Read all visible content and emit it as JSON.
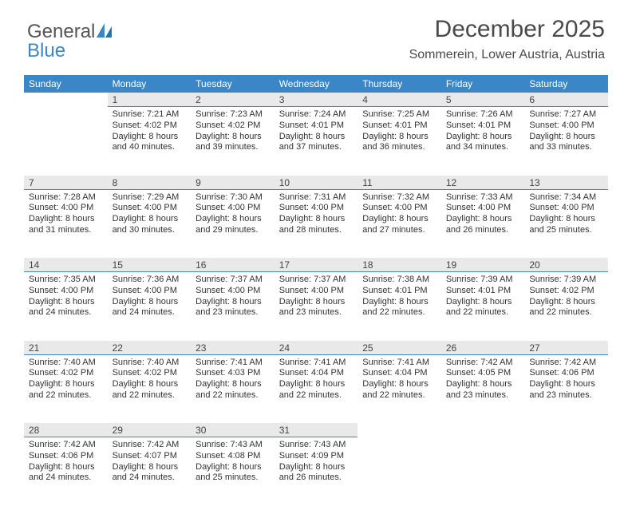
{
  "brand": {
    "word1": "General",
    "word2": "Blue"
  },
  "title": "December 2025",
  "subtitle": "Sommerein, Lower Austria, Austria",
  "colors": {
    "header_bg": "#3b86c6",
    "header_text": "#ffffff",
    "daynum_bg": "#e9e9e9",
    "daynum_border": "#3b86c6",
    "text": "#333333",
    "page_bg": "#ffffff"
  },
  "typography": {
    "title_fontsize": 30,
    "subtitle_fontsize": 16,
    "dayheader_fontsize": 12,
    "daynum_fontsize": 12,
    "cell_fontsize": 11
  },
  "day_headers": [
    "Sunday",
    "Monday",
    "Tuesday",
    "Wednesday",
    "Thursday",
    "Friday",
    "Saturday"
  ],
  "weeks": [
    [
      null,
      {
        "num": "1",
        "sunrise": "7:21 AM",
        "sunset": "4:02 PM",
        "daylight": "8 hours and 40 minutes."
      },
      {
        "num": "2",
        "sunrise": "7:23 AM",
        "sunset": "4:02 PM",
        "daylight": "8 hours and 39 minutes."
      },
      {
        "num": "3",
        "sunrise": "7:24 AM",
        "sunset": "4:01 PM",
        "daylight": "8 hours and 37 minutes."
      },
      {
        "num": "4",
        "sunrise": "7:25 AM",
        "sunset": "4:01 PM",
        "daylight": "8 hours and 36 minutes."
      },
      {
        "num": "5",
        "sunrise": "7:26 AM",
        "sunset": "4:01 PM",
        "daylight": "8 hours and 34 minutes."
      },
      {
        "num": "6",
        "sunrise": "7:27 AM",
        "sunset": "4:00 PM",
        "daylight": "8 hours and 33 minutes."
      }
    ],
    [
      {
        "num": "7",
        "sunrise": "7:28 AM",
        "sunset": "4:00 PM",
        "daylight": "8 hours and 31 minutes."
      },
      {
        "num": "8",
        "sunrise": "7:29 AM",
        "sunset": "4:00 PM",
        "daylight": "8 hours and 30 minutes."
      },
      {
        "num": "9",
        "sunrise": "7:30 AM",
        "sunset": "4:00 PM",
        "daylight": "8 hours and 29 minutes."
      },
      {
        "num": "10",
        "sunrise": "7:31 AM",
        "sunset": "4:00 PM",
        "daylight": "8 hours and 28 minutes."
      },
      {
        "num": "11",
        "sunrise": "7:32 AM",
        "sunset": "4:00 PM",
        "daylight": "8 hours and 27 minutes."
      },
      {
        "num": "12",
        "sunrise": "7:33 AM",
        "sunset": "4:00 PM",
        "daylight": "8 hours and 26 minutes."
      },
      {
        "num": "13",
        "sunrise": "7:34 AM",
        "sunset": "4:00 PM",
        "daylight": "8 hours and 25 minutes."
      }
    ],
    [
      {
        "num": "14",
        "sunrise": "7:35 AM",
        "sunset": "4:00 PM",
        "daylight": "8 hours and 24 minutes."
      },
      {
        "num": "15",
        "sunrise": "7:36 AM",
        "sunset": "4:00 PM",
        "daylight": "8 hours and 24 minutes."
      },
      {
        "num": "16",
        "sunrise": "7:37 AM",
        "sunset": "4:00 PM",
        "daylight": "8 hours and 23 minutes."
      },
      {
        "num": "17",
        "sunrise": "7:37 AM",
        "sunset": "4:00 PM",
        "daylight": "8 hours and 23 minutes."
      },
      {
        "num": "18",
        "sunrise": "7:38 AM",
        "sunset": "4:01 PM",
        "daylight": "8 hours and 22 minutes."
      },
      {
        "num": "19",
        "sunrise": "7:39 AM",
        "sunset": "4:01 PM",
        "daylight": "8 hours and 22 minutes."
      },
      {
        "num": "20",
        "sunrise": "7:39 AM",
        "sunset": "4:02 PM",
        "daylight": "8 hours and 22 minutes."
      }
    ],
    [
      {
        "num": "21",
        "sunrise": "7:40 AM",
        "sunset": "4:02 PM",
        "daylight": "8 hours and 22 minutes."
      },
      {
        "num": "22",
        "sunrise": "7:40 AM",
        "sunset": "4:02 PM",
        "daylight": "8 hours and 22 minutes."
      },
      {
        "num": "23",
        "sunrise": "7:41 AM",
        "sunset": "4:03 PM",
        "daylight": "8 hours and 22 minutes."
      },
      {
        "num": "24",
        "sunrise": "7:41 AM",
        "sunset": "4:04 PM",
        "daylight": "8 hours and 22 minutes."
      },
      {
        "num": "25",
        "sunrise": "7:41 AM",
        "sunset": "4:04 PM",
        "daylight": "8 hours and 22 minutes."
      },
      {
        "num": "26",
        "sunrise": "7:42 AM",
        "sunset": "4:05 PM",
        "daylight": "8 hours and 23 minutes."
      },
      {
        "num": "27",
        "sunrise": "7:42 AM",
        "sunset": "4:06 PM",
        "daylight": "8 hours and 23 minutes."
      }
    ],
    [
      {
        "num": "28",
        "sunrise": "7:42 AM",
        "sunset": "4:06 PM",
        "daylight": "8 hours and 24 minutes."
      },
      {
        "num": "29",
        "sunrise": "7:42 AM",
        "sunset": "4:07 PM",
        "daylight": "8 hours and 24 minutes."
      },
      {
        "num": "30",
        "sunrise": "7:43 AM",
        "sunset": "4:08 PM",
        "daylight": "8 hours and 25 minutes."
      },
      {
        "num": "31",
        "sunrise": "7:43 AM",
        "sunset": "4:09 PM",
        "daylight": "8 hours and 26 minutes."
      },
      null,
      null,
      null
    ]
  ],
  "labels": {
    "sunrise_prefix": "Sunrise: ",
    "sunset_prefix": "Sunset: ",
    "daylight_prefix": "Daylight: "
  }
}
